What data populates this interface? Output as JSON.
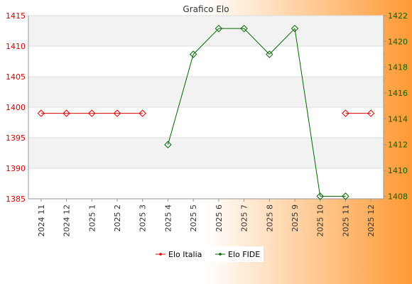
{
  "chart_data": {
    "type": "line",
    "title": "Grafico Elo",
    "categories": [
      "2024 11",
      "2024 12",
      "2025 1",
      "2025 2",
      "2025 3",
      "2025 4",
      "2025 5",
      "2025 6",
      "2025 7",
      "2025 8",
      "2025 9",
      "2025 10",
      "2025 11",
      "2025 12"
    ],
    "y_left": {
      "range": [
        1385,
        1415
      ],
      "ticks": [
        1385,
        1390,
        1395,
        1400,
        1405,
        1410,
        1415
      ]
    },
    "y_right": {
      "range": [
        1407.8,
        1422
      ],
      "ticks": [
        1408,
        1410,
        1412,
        1414,
        1416,
        1418,
        1420,
        1422
      ]
    },
    "series": [
      {
        "name": "Elo Italia",
        "axis": "left",
        "color": "#dd0000",
        "values": [
          1399,
          1399,
          1399,
          1399,
          1399,
          null,
          null,
          null,
          null,
          null,
          null,
          null,
          1399,
          1399
        ]
      },
      {
        "name": "Elo FIDE",
        "axis": "right",
        "color": "#006600",
        "values": [
          null,
          null,
          null,
          null,
          null,
          1412,
          1419,
          1421,
          1421,
          1419,
          1421,
          1408,
          1408,
          null
        ]
      }
    ],
    "grid": true,
    "legend_position": "bottom"
  }
}
